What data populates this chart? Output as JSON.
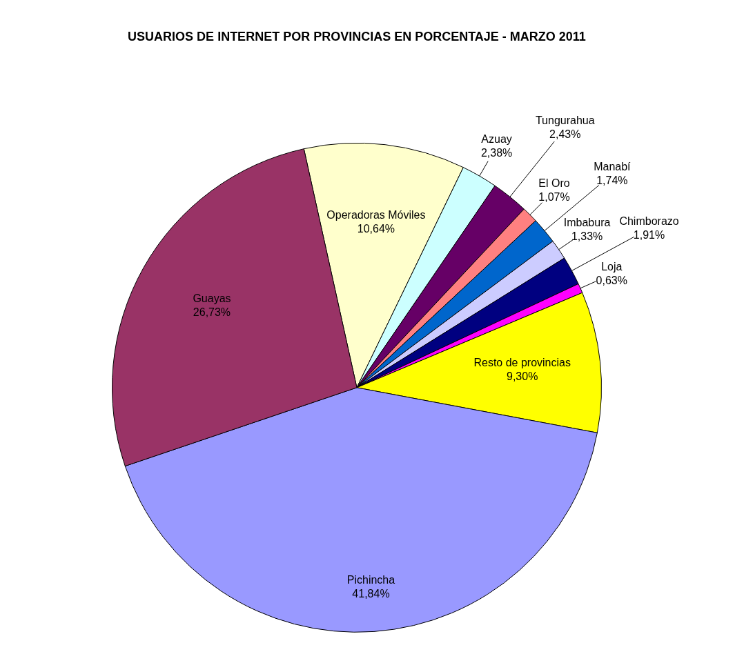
{
  "chart_data": {
    "type": "pie",
    "title": "USUARIOS DE INTERNET POR PROVINCIAS EN PORCENTAJE - MARZO 2011",
    "categories": [
      "Operadoras Móviles",
      "Azuay",
      "Tungurahua",
      "El Oro",
      "Manabí",
      "Imbabura",
      "Chimborazo",
      "Loja",
      "Resto de provincias",
      "Pichincha",
      "Guayas"
    ],
    "values": [
      10.64,
      2.38,
      2.43,
      1.07,
      1.74,
      1.33,
      1.91,
      0.63,
      9.3,
      41.84,
      26.73
    ],
    "value_labels": [
      "10,64%",
      "2,38%",
      "2,43%",
      "1,07%",
      "1,74%",
      "1,33%",
      "1,91%",
      "0,63%",
      "9,30%",
      "41,84%",
      "26,73%"
    ],
    "colors": [
      "#ffffcc",
      "#ccffff",
      "#660066",
      "#ff8080",
      "#0066cc",
      "#ccccff",
      "#000080",
      "#ff00ff",
      "#ffff00",
      "#9999ff",
      "#993366"
    ],
    "legend": false
  }
}
